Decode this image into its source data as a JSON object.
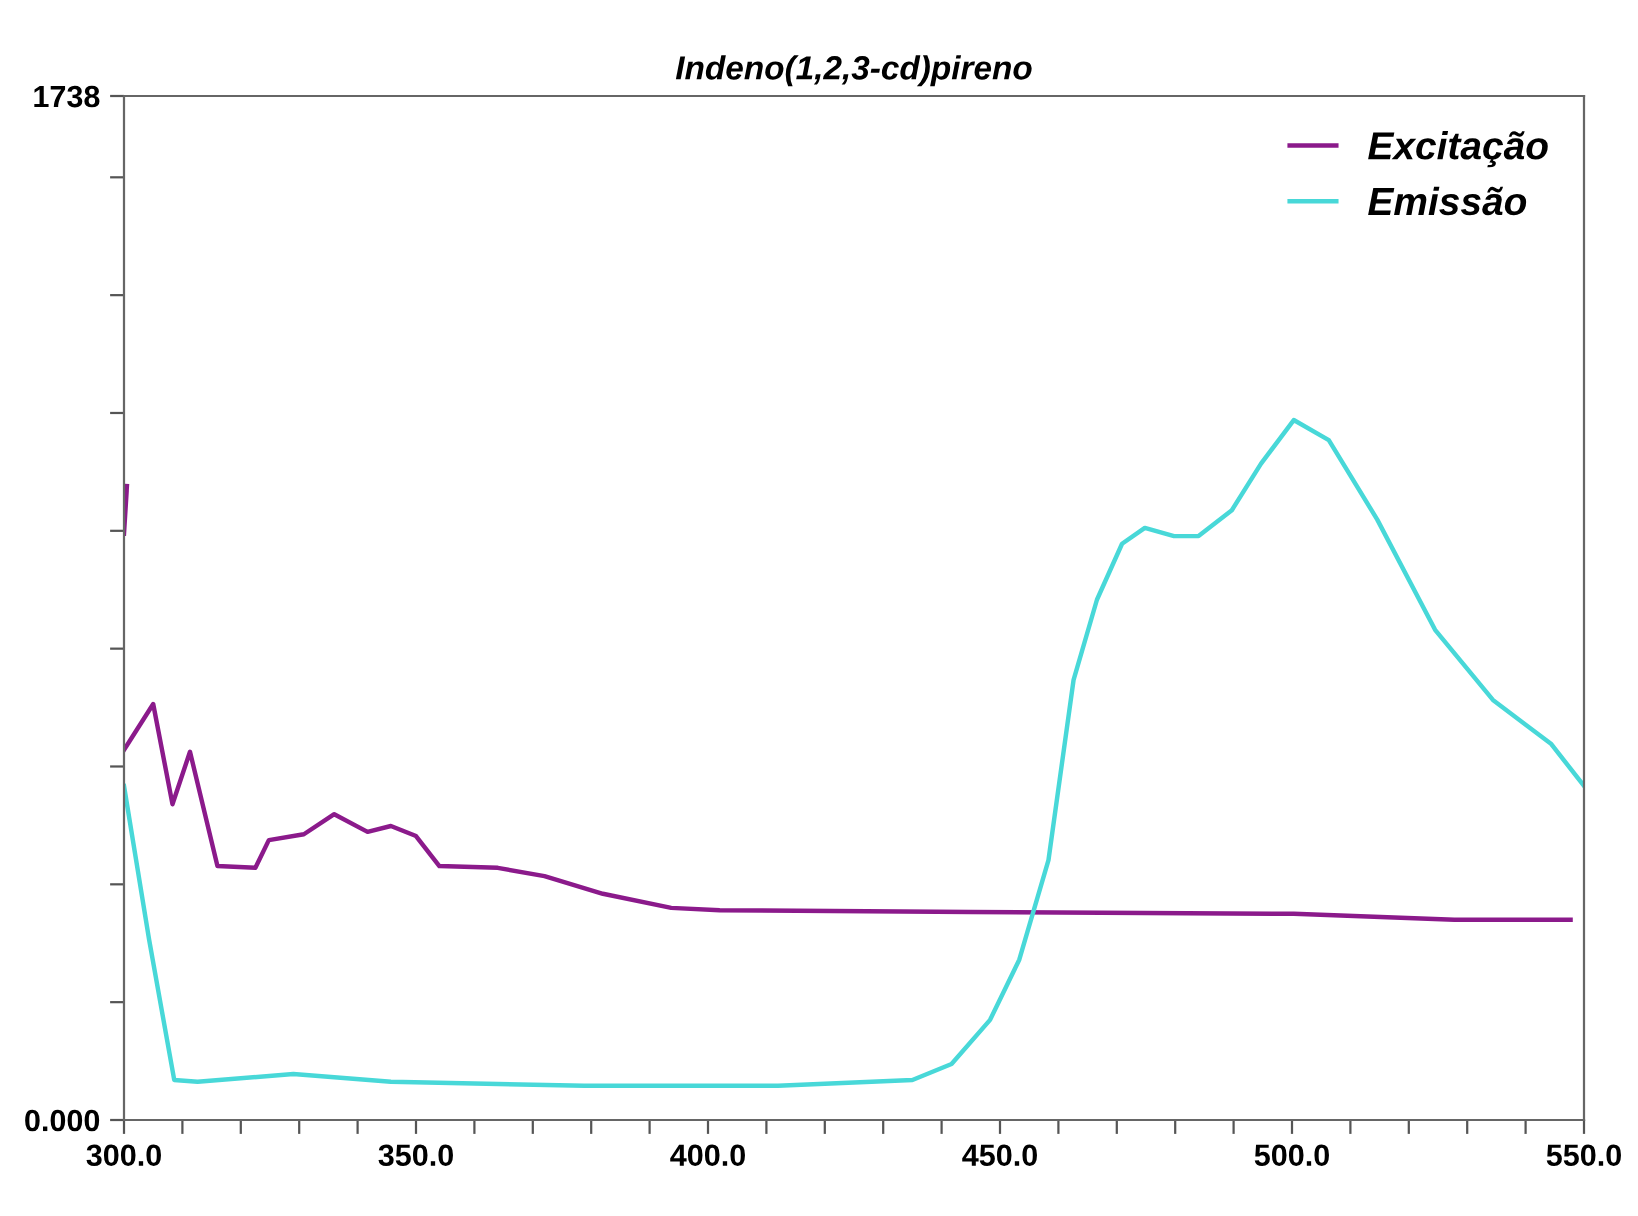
{
  "chart_data": {
    "type": "line",
    "title": "Indeno(1,2,3-cd)pireno",
    "xlim": [
      300,
      550
    ],
    "ylim": [
      0,
      1738
    ],
    "xticks": [
      {
        "value": 300,
        "label": "300.0"
      },
      {
        "value": 310,
        "label": null
      },
      {
        "value": 320,
        "label": null
      },
      {
        "value": 330,
        "label": null
      },
      {
        "value": 340,
        "label": null
      },
      {
        "value": 350,
        "label": "350.0"
      },
      {
        "value": 360,
        "label": null
      },
      {
        "value": 370,
        "label": null
      },
      {
        "value": 380,
        "label": null
      },
      {
        "value": 390,
        "label": null
      },
      {
        "value": 400,
        "label": "400.0"
      },
      {
        "value": 410,
        "label": null
      },
      {
        "value": 420,
        "label": null
      },
      {
        "value": 430,
        "label": null
      },
      {
        "value": 440,
        "label": null
      },
      {
        "value": 450,
        "label": "450.0"
      },
      {
        "value": 460,
        "label": null
      },
      {
        "value": 470,
        "label": null
      },
      {
        "value": 480,
        "label": null
      },
      {
        "value": 490,
        "label": null
      },
      {
        "value": 500,
        "label": "500.0"
      },
      {
        "value": 510,
        "label": null
      },
      {
        "value": 520,
        "label": null
      },
      {
        "value": 530,
        "label": null
      },
      {
        "value": 540,
        "label": null
      },
      {
        "value": 550,
        "label": "550.0"
      }
    ],
    "yticks": [
      {
        "value": 0,
        "label": "0.000"
      },
      {
        "value": 200,
        "label": null
      },
      {
        "value": 400,
        "label": null
      },
      {
        "value": 600,
        "label": null
      },
      {
        "value": 800,
        "label": null
      },
      {
        "value": 1000,
        "label": null
      },
      {
        "value": 1200,
        "label": null
      },
      {
        "value": 1400,
        "label": null
      },
      {
        "value": 1600,
        "label": null
      },
      {
        "value": 1738,
        "label": "1738"
      }
    ],
    "grid": false,
    "legend": "top right",
    "marker": "none",
    "line_style": "solid",
    "series": [
      {
        "color": "#8b1a8b",
        "x": [
          300,
          300.5
        ],
        "values": [
          995,
          1076
        ]
      },
      {
        "name": "Excitação",
        "color": "#8b1a8b",
        "x": [
          300,
          305,
          308.3,
          311.3,
          316,
          322.5,
          324.8,
          330.8,
          336,
          341.7,
          345.7,
          350,
          354,
          364,
          372,
          382,
          393.7,
          402,
          445,
          500.3,
          527.8,
          547.7
        ],
        "values": [
          628,
          706,
          536,
          625,
          431,
          428,
          475,
          485,
          519,
          489,
          499,
          482,
          431,
          428,
          414,
          384,
          360,
          356,
          353,
          350,
          340,
          340
        ]
      },
      {
        "name": "Emissão",
        "color": "#48d8d8",
        "x": [
          300,
          304.3,
          308.6,
          312.6,
          329,
          345.7,
          378.8,
          412,
          435,
          441.7,
          448.3,
          453.3,
          458.3,
          462.6,
          466.6,
          470.9,
          474.8,
          479.8,
          484,
          489.7,
          494.7,
          500.3,
          506.3,
          514.6,
          524.5,
          534.4,
          544.4,
          550
        ],
        "values": [
          567,
          306,
          68,
          65,
          78,
          65,
          58,
          58,
          68,
          95,
          170,
          272,
          441,
          747,
          883,
          978,
          1005,
          991,
          991,
          1035,
          1114,
          1188,
          1154,
          1019,
          832,
          713,
          638,
          567
        ]
      }
    ]
  }
}
